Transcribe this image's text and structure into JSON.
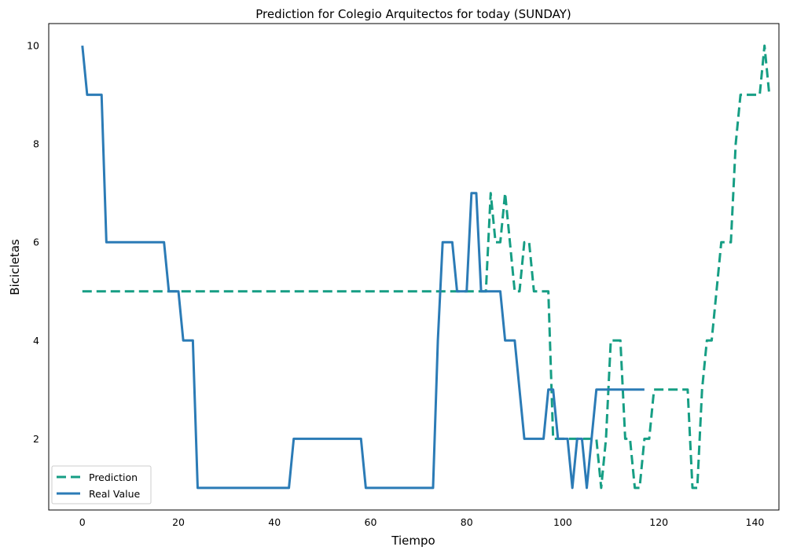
{
  "chart_data": {
    "type": "line",
    "title": "Prediction for Colegio Arquitectos for today (SUNDAY)",
    "xlabel": "Tiempo",
    "ylabel": "Bicicletas",
    "xlim": [
      -7,
      145
    ],
    "ylim": [
      0.55,
      10.45
    ],
    "xticks": [
      0,
      20,
      40,
      60,
      80,
      100,
      120,
      140
    ],
    "yticks": [
      2,
      4,
      6,
      8,
      10
    ],
    "grid": false,
    "legend_position": "bottom-left",
    "series": [
      {
        "name": "Prediction",
        "color": "#169e84",
        "style": "dashed",
        "points": [
          [
            0,
            5
          ],
          [
            84,
            5
          ],
          [
            85,
            7
          ],
          [
            86,
            6
          ],
          [
            87,
            6
          ],
          [
            88,
            7
          ],
          [
            90,
            5
          ],
          [
            91,
            5
          ],
          [
            92,
            6
          ],
          [
            93,
            6
          ],
          [
            94,
            5
          ],
          [
            96,
            5
          ],
          [
            97,
            5
          ],
          [
            98,
            2
          ],
          [
            107,
            2
          ],
          [
            108,
            1
          ],
          [
            109,
            2
          ],
          [
            110,
            4
          ],
          [
            112,
            4
          ],
          [
            113,
            2
          ],
          [
            114,
            2
          ],
          [
            115,
            1
          ],
          [
            116,
            1
          ],
          [
            117,
            2
          ],
          [
            118,
            2
          ],
          [
            119,
            3
          ],
          [
            126,
            3
          ],
          [
            127,
            1
          ],
          [
            128,
            1
          ],
          [
            129,
            3
          ],
          [
            130,
            4
          ],
          [
            131,
            4
          ],
          [
            132,
            5
          ],
          [
            133,
            6
          ],
          [
            135,
            6
          ],
          [
            136,
            8
          ],
          [
            137,
            9
          ],
          [
            141,
            9
          ],
          [
            142,
            10
          ],
          [
            143,
            9
          ]
        ]
      },
      {
        "name": "Real Value",
        "color": "#2b7bb6",
        "style": "solid",
        "points": [
          [
            0,
            10
          ],
          [
            1,
            9
          ],
          [
            4,
            9
          ],
          [
            5,
            6
          ],
          [
            17,
            6
          ],
          [
            18,
            5
          ],
          [
            20,
            5
          ],
          [
            21,
            4
          ],
          [
            23,
            4
          ],
          [
            24,
            1
          ],
          [
            43,
            1
          ],
          [
            44,
            2
          ],
          [
            58,
            2
          ],
          [
            59,
            1
          ],
          [
            73,
            1
          ],
          [
            74,
            4
          ],
          [
            75,
            6
          ],
          [
            77,
            6
          ],
          [
            78,
            5
          ],
          [
            80,
            5
          ],
          [
            81,
            7
          ],
          [
            82,
            7
          ],
          [
            83,
            5
          ],
          [
            87,
            5
          ],
          [
            88,
            4
          ],
          [
            90,
            4
          ],
          [
            92,
            2
          ],
          [
            96,
            2
          ],
          [
            97,
            3
          ],
          [
            98,
            3
          ],
          [
            99,
            2
          ],
          [
            101,
            2
          ],
          [
            102,
            1
          ],
          [
            103,
            2
          ],
          [
            104,
            2
          ],
          [
            105,
            1
          ],
          [
            107,
            3
          ],
          [
            117,
            3
          ]
        ]
      }
    ]
  }
}
